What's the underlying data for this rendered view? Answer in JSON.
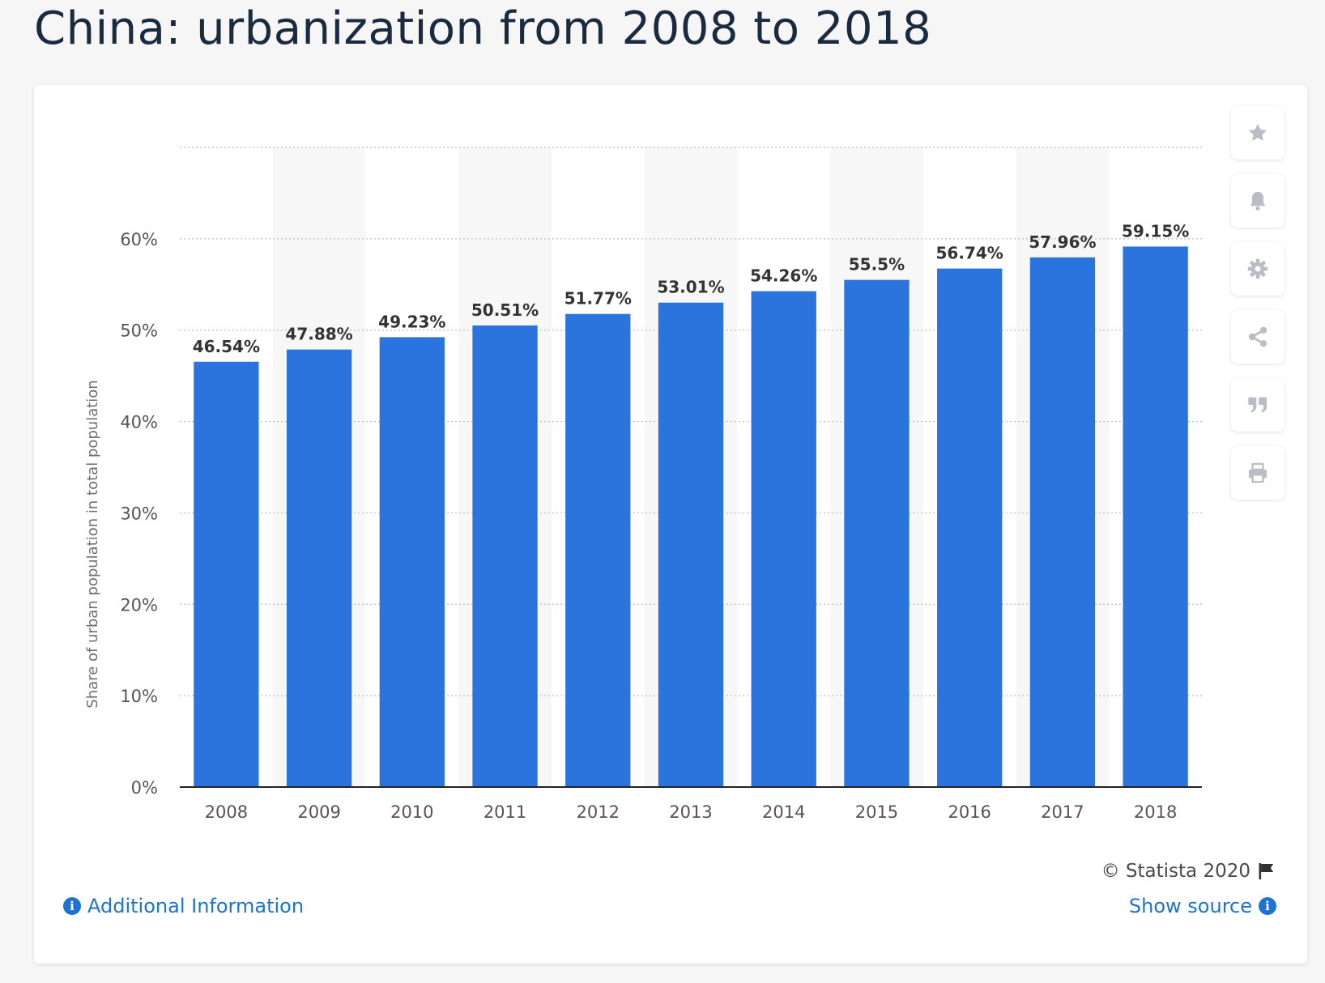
{
  "title": "China: urbanization from 2008 to 2018",
  "toolbar": {
    "icons": [
      "star-icon",
      "bell-icon",
      "gear-icon",
      "share-icon",
      "quote-icon",
      "print-icon"
    ]
  },
  "footer": {
    "copyright": "© Statista 2020",
    "additional_info": "Additional Information",
    "show_source": "Show source"
  },
  "colors": {
    "bar": "#2b74de",
    "grid": "#bdbdbd",
    "band": "#f7f7f8",
    "label": "#333333",
    "axis_text": "#555555",
    "link": "#1e73d0"
  },
  "chart_data": {
    "type": "bar",
    "categories": [
      "2008",
      "2009",
      "2010",
      "2011",
      "2012",
      "2013",
      "2014",
      "2015",
      "2016",
      "2017",
      "2018"
    ],
    "values": [
      46.54,
      47.88,
      49.23,
      50.51,
      51.77,
      53.01,
      54.26,
      55.5,
      56.74,
      57.96,
      59.15
    ],
    "value_labels": [
      "46.54%",
      "47.88%",
      "49.23%",
      "50.51%",
      "51.77%",
      "53.01%",
      "54.26%",
      "55.5%",
      "56.74%",
      "57.96%",
      "59.15%"
    ],
    "ylabel": "Share of urban population in total population",
    "xlabel": "",
    "yticks": [
      0,
      10,
      20,
      30,
      40,
      50,
      60
    ],
    "ytick_labels": [
      "0%",
      "10%",
      "20%",
      "30%",
      "40%",
      "50%",
      "60%"
    ],
    "ylim": [
      0,
      70
    ],
    "grid": true,
    "legend": "none"
  }
}
